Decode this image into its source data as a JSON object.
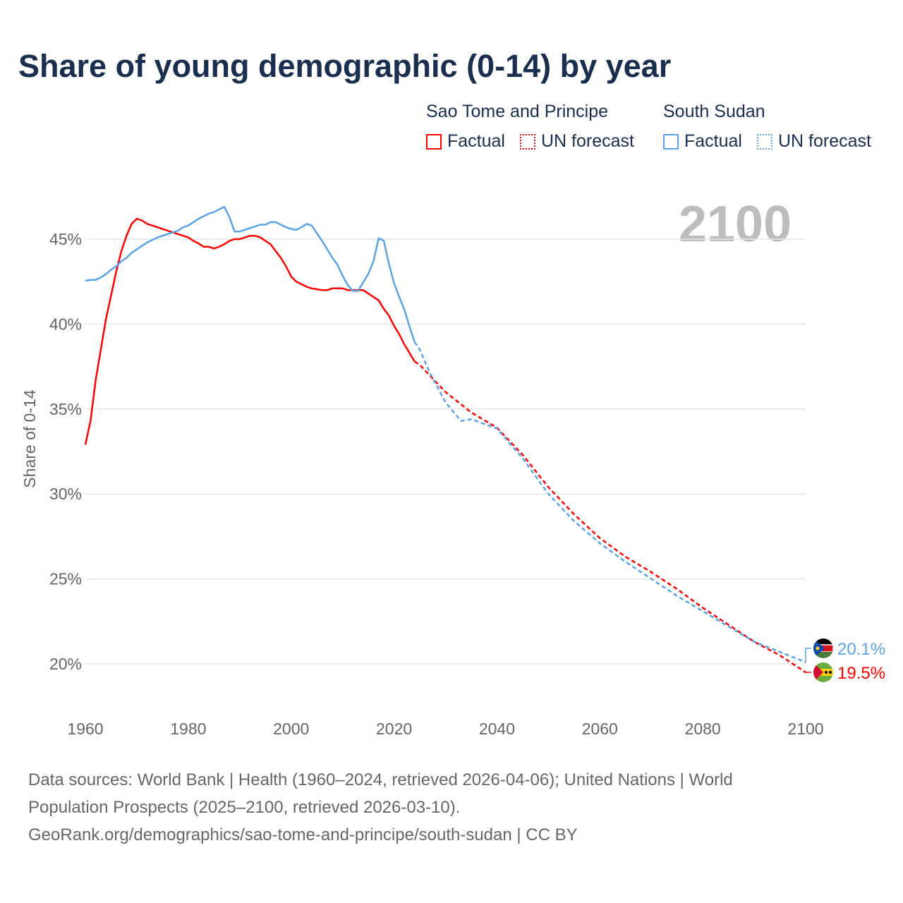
{
  "title": "Share of young demographic (0-14) by year",
  "legend": {
    "groups": [
      {
        "name": "Sao Tome and Principe",
        "factual": "Factual",
        "forecast": "UN forecast",
        "color": "#ff0000"
      },
      {
        "name": "South Sudan",
        "factual": "Factual",
        "forecast": "UN forecast",
        "color": "#5ba3e6"
      }
    ]
  },
  "year_overlay": "2100",
  "footer": {
    "line1": "Data sources: World Bank | Health (1960–2024, retrieved 2026-04-06); United Nations | World",
    "line2": "Population Prospects (2025–2100, retrieved 2026-03-10).",
    "line3": "GeoRank.org/demographics/sao-tome-and-principe/south-sudan | CC BY"
  },
  "chart_data": {
    "type": "line",
    "title": "Share of young demographic (0-14) by year",
    "xlabel": "",
    "ylabel": "Share of 0-14",
    "xlim": [
      1960,
      2100
    ],
    "ylim": [
      18,
      48
    ],
    "xticks": [
      "1960",
      "1980",
      "2000",
      "2020",
      "2040",
      "2060",
      "2080",
      "2100"
    ],
    "yticks": [
      {
        "v": 20,
        "label": "20%"
      },
      {
        "v": 25,
        "label": "25%"
      },
      {
        "v": 30,
        "label": "30%"
      },
      {
        "v": 35,
        "label": "35%"
      },
      {
        "v": 40,
        "label": "40%"
      },
      {
        "v": 45,
        "label": "45%"
      }
    ],
    "grid": true,
    "series": [
      {
        "name": "Sao Tome and Principe",
        "color": "#ff0000",
        "end_label": "19.5%",
        "flag": "sao-tome-flag",
        "factual": {
          "x": [
            1960,
            1961,
            1962,
            1963,
            1964,
            1965,
            1966,
            1967,
            1968,
            1969,
            1970,
            1971,
            1972,
            1973,
            1974,
            1975,
            1976,
            1977,
            1978,
            1979,
            1980,
            1981,
            1982,
            1983,
            1984,
            1985,
            1986,
            1987,
            1988,
            1989,
            1990,
            1991,
            1992,
            1993,
            1994,
            1995,
            1996,
            1997,
            1998,
            1999,
            2000,
            2001,
            2002,
            2003,
            2004,
            2005,
            2006,
            2007,
            2008,
            2009,
            2010,
            2011,
            2012,
            2013,
            2014,
            2015,
            2016,
            2017,
            2018,
            2019,
            2020,
            2021,
            2022,
            2023,
            2024
          ],
          "y": [
            32.9,
            34.3,
            36.7,
            38.5,
            40.3,
            41.7,
            43.1,
            44.3,
            45.2,
            45.9,
            46.2,
            46.1,
            45.9,
            45.8,
            45.7,
            45.6,
            45.5,
            45.4,
            45.3,
            45.2,
            45.1,
            44.9,
            44.75,
            44.55,
            44.55,
            44.45,
            44.55,
            44.7,
            44.9,
            45.0,
            45.0,
            45.1,
            45.2,
            45.2,
            45.1,
            44.9,
            44.7,
            44.3,
            43.9,
            43.4,
            42.8,
            42.5,
            42.35,
            42.2,
            42.1,
            42.05,
            42.0,
            42.0,
            42.1,
            42.1,
            42.1,
            42.0,
            42.0,
            42.0,
            42.0,
            41.8,
            41.6,
            41.4,
            40.9,
            40.5,
            39.9,
            39.4,
            38.8,
            38.3,
            37.8
          ]
        },
        "forecast": {
          "x": [
            2024,
            2025,
            2030,
            2035,
            2040,
            2045,
            2050,
            2055,
            2060,
            2065,
            2070,
            2075,
            2080,
            2085,
            2090,
            2095,
            2100
          ],
          "y": [
            37.8,
            37.6,
            36.0,
            34.8,
            33.9,
            32.3,
            30.4,
            28.8,
            27.4,
            26.3,
            25.4,
            24.4,
            23.3,
            22.3,
            21.3,
            20.5,
            19.5
          ]
        }
      },
      {
        "name": "South Sudan",
        "color": "#5ba3e6",
        "end_label": "20.1%",
        "flag": "south-sudan-flag",
        "factual": {
          "x": [
            1960,
            1961,
            1962,
            1963,
            1964,
            1965,
            1966,
            1967,
            1968,
            1969,
            1970,
            1971,
            1972,
            1973,
            1974,
            1975,
            1976,
            1977,
            1978,
            1979,
            1980,
            1981,
            1982,
            1983,
            1984,
            1985,
            1986,
            1987,
            1988,
            1989,
            1990,
            1991,
            1992,
            1993,
            1994,
            1995,
            1996,
            1997,
            1998,
            1999,
            2000,
            2001,
            2002,
            2003,
            2004,
            2005,
            2006,
            2007,
            2008,
            2009,
            2010,
            2011,
            2012,
            2013,
            2014,
            2015,
            2016,
            2017,
            2018,
            2019,
            2020,
            2021,
            2022,
            2023,
            2024
          ],
          "y": [
            42.55,
            42.6,
            42.6,
            42.75,
            42.95,
            43.2,
            43.4,
            43.7,
            43.9,
            44.2,
            44.4,
            44.6,
            44.8,
            44.95,
            45.1,
            45.2,
            45.3,
            45.4,
            45.5,
            45.7,
            45.8,
            46.0,
            46.2,
            46.35,
            46.5,
            46.6,
            46.75,
            46.9,
            46.3,
            45.45,
            45.45,
            45.55,
            45.65,
            45.75,
            45.85,
            45.85,
            46.0,
            46.0,
            45.85,
            45.7,
            45.6,
            45.55,
            45.7,
            45.9,
            45.8,
            45.35,
            44.9,
            44.4,
            43.9,
            43.5,
            42.85,
            42.3,
            41.95,
            41.95,
            42.45,
            42.95,
            43.7,
            45.05,
            44.9,
            43.55,
            42.4,
            41.6,
            40.85,
            39.85,
            38.95
          ]
        },
        "forecast": {
          "x": [
            2024,
            2025,
            2027,
            2030,
            2033,
            2035,
            2040,
            2045,
            2050,
            2055,
            2060,
            2065,
            2070,
            2075,
            2080,
            2085,
            2090,
            2095,
            2100
          ],
          "y": [
            38.95,
            38.5,
            37.1,
            35.4,
            34.3,
            34.4,
            33.85,
            32.1,
            30.0,
            28.4,
            27.1,
            26.0,
            25.0,
            24.0,
            23.1,
            22.2,
            21.3,
            20.7,
            20.1
          ]
        }
      }
    ]
  }
}
